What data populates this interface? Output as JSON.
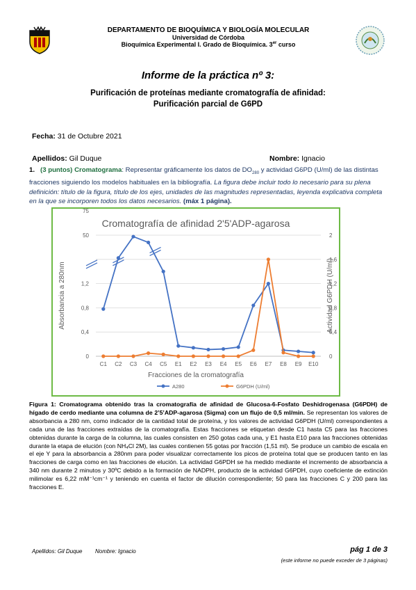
{
  "header": {
    "department": "DEPARTAMENTO DE BIOQUÍMICA Y BIOLOGÍA MOLECULAR",
    "university": "Universidad de Córdoba",
    "course": "Bioquímica Experimental I. Grado de Bioquímica. 3",
    "course_sup": "er",
    "course_tail": " curso"
  },
  "report_title": "Informe de la práctica nº 3:",
  "subtitle_line1": "Purificación de proteínas mediante cromatografía de afinidad:",
  "subtitle_line2": "Purificación parcial de G6PD",
  "fecha_label": "Fecha:",
  "fecha_value": " 31 de Octubre 2021",
  "apellidos_label": "Apellidos:",
  "apellidos_value": " Gil Duque",
  "nombre_label": "Nombre:",
  "nombre_value": " Ignacio",
  "question": {
    "number": "1.",
    "points": "(3 puntos)",
    "name": "Cromatograma",
    "text1": ": Representar gráficamente los datos de DO",
    "sub": "280",
    "text2": " y actividad G6PD (U/ml) de las distintas fracciones siguiendo los modelos habituales en la bibliografía. ",
    "italic": "La figura debe incluir todo lo necesario para su plena definición: título de la figura, título de los ejes, unidades de las magnitudes representadas, leyenda explicativa completa en la que se incorporen todos los datos necesarios.",
    "bold_end": " (máx 1 página)."
  },
  "chart_data": {
    "type": "line",
    "title": "Cromatografía de afinidad 2'5'ADP-agarosa",
    "xlabel": "Fracciones de la cromatografía",
    "ylabel_left": "Absorbancia a 280nm",
    "ylabel_right": "Actividad G6PDH (U/ml)",
    "categories": [
      "C1",
      "C2",
      "C3",
      "C4",
      "C5",
      "E1",
      "E2",
      "E3",
      "E4",
      "E5",
      "E6",
      "E7",
      "E8",
      "E9",
      "E10"
    ],
    "left_axis_ticks": [
      "0",
      "0,4",
      "0,8",
      "1,2",
      "",
      "50",
      "75"
    ],
    "left_axis_note": "broken axis: lower section 0–1,6, upper section 25–75",
    "right_axis_ticks": [
      "0",
      "0,4",
      "0,8",
      "1,2",
      "1,6",
      "2"
    ],
    "ylim_right": [
      0,
      2
    ],
    "series": [
      {
        "name": "A280",
        "color": "#4472c4",
        "values": [
          0.78,
          28,
          72,
          60,
          1.4,
          0.17,
          0.14,
          0.11,
          0.12,
          0.15,
          0.84,
          1.2,
          0.1,
          0.08,
          0.06
        ]
      },
      {
        "name": "G6PDH (U/ml)",
        "color": "#ed7d31",
        "values": [
          0.0,
          0.0,
          0.0,
          0.05,
          0.03,
          0.0,
          0.0,
          0.0,
          0.0,
          0.0,
          0.1,
          1.6,
          0.06,
          0.0,
          0.0
        ]
      }
    ],
    "legend_position": "bottom",
    "grid": true
  },
  "caption": {
    "lead": "Figura 1: Cromatograma obtenido tras la cromatografía de afinidad de Glucosa-6-Fosfato Deshidrogenasa (G6PDH) de hígado de cerdo mediante una columna de 2’5’ADP-agarosa (Sigma) con un flujo de 0,5 ml/min.",
    "body": " Se representan los valores de absorbancia a 280 nm, como indicador de la cantidad total de proteína, y los valores de actividad G6PDH (U/ml) correspondientes a cada una de las fracciones extraídas de la cromatografía. Estas fracciones se etiquetan desde C1 hasta C5 para las fracciones obtenidas durante la carga de la columna, las cuales consisten en 250 gotas cada una, y E1 hasta E10 para las fracciones obtenidas durante la etapa de elución (con NH₄Cl 2M), las cuales contienen 55 gotas por fracción (1,51 ml). Se produce un cambio de escala en el eje Y para la absorbancia a 280nm para poder visualizar correctamente los picos de proteína total que se producen tanto en las fracciones de carga como en las fracciones de elución. La actividad G6PDH se ha medido mediante el incremento de absorbancia a 340 nm durante 2 minutos y 30ºC debido a la formación de NADPH, producto de la actividad G6PDH, cuyo coeficiente de extinción milimolar es 6,22 mM⁻¹cm⁻¹ y teniendo en cuenta el factor de dilución correspondiente; 50 para las fracciones C y 200 para las fracciones E."
  },
  "footer": {
    "apellidos": "Apellidos: Gil Duque",
    "nombre": "Nombre: Ignacio",
    "page": "pág 1 de 3",
    "page_note": "(este informe no puede exceder de 3 páginas)"
  }
}
